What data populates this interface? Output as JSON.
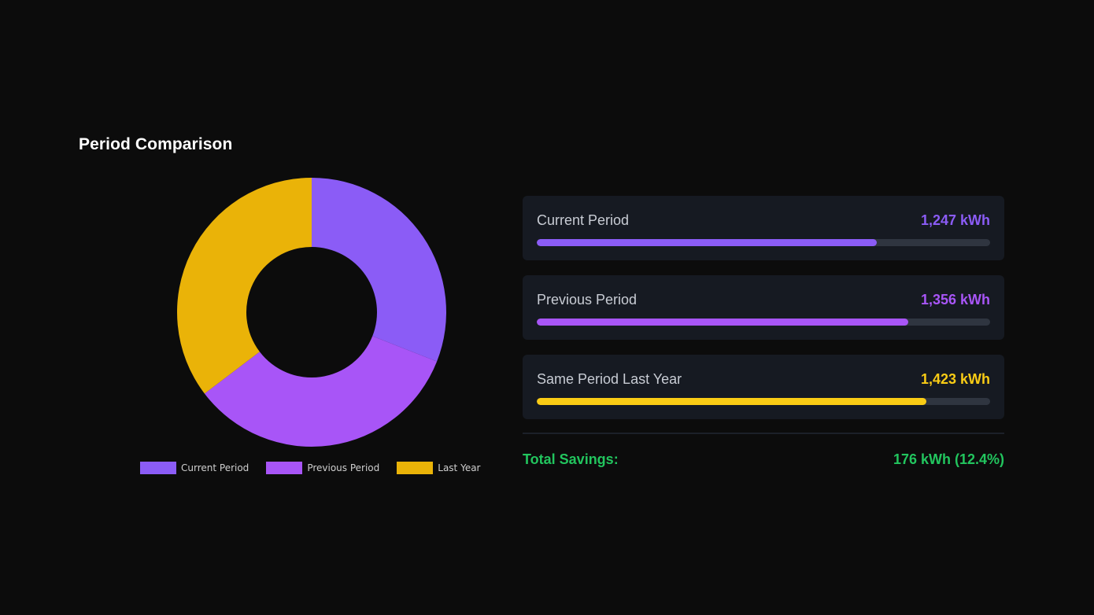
{
  "section_title": "Period Comparison",
  "chart_data": {
    "type": "pie",
    "donut": true,
    "labels": [
      "Current Period",
      "Previous Period",
      "Last Year"
    ],
    "values": [
      1247,
      1356,
      1423
    ],
    "colors": [
      "#8b5cf6",
      "#a855f7",
      "#eab308"
    ],
    "legend_position": "bottom"
  },
  "comparison": [
    {
      "label": "Current Period",
      "value": "1,247 kWh",
      "fraction": 0.75,
      "color": "#8b5cf6"
    },
    {
      "label": "Previous Period",
      "value": "1,356 kWh",
      "fraction": 0.82,
      "color": "#a855f7"
    },
    {
      "label": "Same Period Last Year",
      "value": "1,423 kWh",
      "fraction": 0.86,
      "color": "#facc15"
    }
  ],
  "savings": {
    "label": "Total Savings:",
    "value": "176 kWh (12.4%)",
    "color": "#22c55e"
  }
}
